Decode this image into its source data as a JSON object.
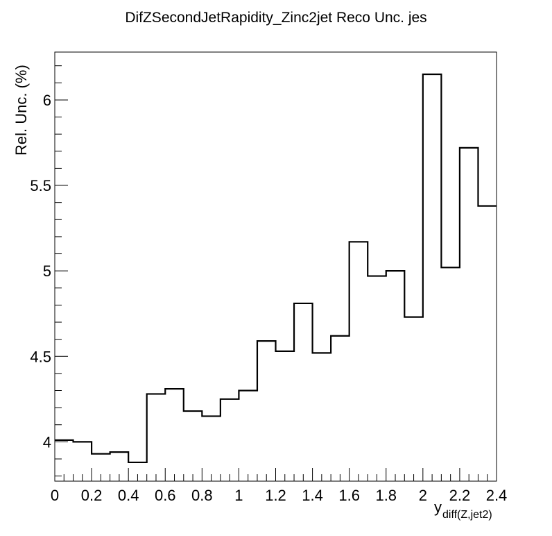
{
  "chart_data": {
    "type": "histogram-step",
    "title": "DifZSecondJetRapidity_Zinc2jet Reco Unc. jes",
    "ylabel": "Rel. Unc. (%)",
    "xlabel_main": "y",
    "xlabel_sub": "diff(Z,jet2)",
    "xlim": [
      0,
      2.4
    ],
    "ylim": [
      3.77,
      6.28
    ],
    "xticks": [
      "0",
      "0.2",
      "0.4",
      "0.6",
      "0.8",
      "1",
      "1.2",
      "1.4",
      "1.6",
      "1.8",
      "2",
      "2.2",
      "2.4"
    ],
    "yticks": [
      "4",
      "4.5",
      "5",
      "5.5",
      "6"
    ],
    "bin_edges": [
      0,
      0.1,
      0.2,
      0.3,
      0.4,
      0.5,
      0.6,
      0.7,
      0.8,
      0.9,
      1.0,
      1.1,
      1.2,
      1.3,
      1.4,
      1.5,
      1.6,
      1.7,
      1.8,
      1.9,
      2.0,
      2.1,
      2.2,
      2.3,
      2.4
    ],
    "values": [
      4.01,
      4.0,
      3.93,
      3.94,
      3.88,
      4.28,
      4.31,
      4.18,
      4.15,
      4.25,
      4.3,
      4.59,
      4.53,
      4.81,
      4.52,
      4.62,
      5.17,
      4.97,
      5.0,
      4.73,
      6.15,
      5.02,
      5.72,
      5.38
    ],
    "grid": false,
    "legend": "none"
  }
}
